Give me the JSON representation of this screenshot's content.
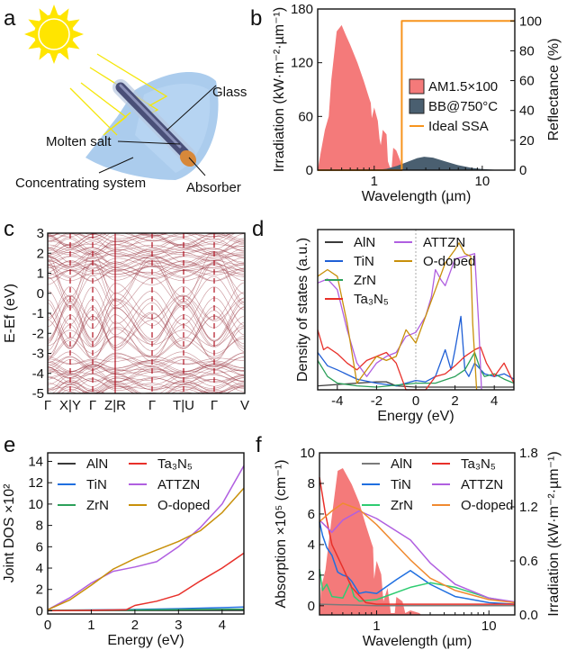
{
  "panel_labels": [
    "a",
    "b",
    "c",
    "d",
    "e",
    "f"
  ],
  "panel_a": {
    "labels": {
      "glass": "Glass",
      "molten_salt": "Molten salt",
      "absorber": "Absorber",
      "concentrating": "Concentrating system"
    },
    "icons": [
      "sun-icon",
      "parabolic-trough",
      "receiver-tube",
      "sunlight-rays"
    ]
  },
  "chart_data": [
    {
      "panel": "b",
      "type": "area",
      "xlabel": "Wavelength (µm)",
      "ylabel": "Irradiation (kW·m⁻²·µm⁻¹)",
      "y2label": "Reflectance (%)",
      "xscale": "log",
      "xlim": [
        0.3,
        20
      ],
      "ylim": [
        0,
        180
      ],
      "y2lim": [
        0,
        108
      ],
      "x_ticks": [
        1,
        10
      ],
      "x_tick_labels": [
        "1",
        "10"
      ],
      "y_ticks": [
        0,
        60,
        120,
        180
      ],
      "y_tick_labels": [
        "0",
        "60",
        "120",
        "180"
      ],
      "y2_ticks": [
        0,
        20,
        40,
        60,
        80,
        100
      ],
      "y2_tick_labels": [
        "0",
        "20",
        "40",
        "60",
        "80",
        "100"
      ],
      "legend_position": "right",
      "series": [
        {
          "name": "AM1.5×100",
          "kind": "area",
          "axis": "left",
          "color": "#f47a7a",
          "x": [
            0.3,
            0.32,
            0.35,
            0.38,
            0.4,
            0.45,
            0.5,
            0.55,
            0.6,
            0.7,
            0.8,
            0.9,
            0.93,
            0.95,
            1.0,
            1.08,
            1.12,
            1.15,
            1.2,
            1.3,
            1.34,
            1.4,
            1.45,
            1.5,
            1.6,
            1.75,
            1.8,
            2.0,
            2.3,
            2.5
          ],
          "y": [
            0,
            20,
            45,
            60,
            100,
            155,
            162,
            150,
            140,
            120,
            100,
            80,
            75,
            58,
            70,
            55,
            35,
            28,
            45,
            40,
            10,
            3,
            3,
            25,
            22,
            10,
            2,
            5,
            3,
            0
          ]
        },
        {
          "name": "BB@750°C",
          "kind": "area",
          "axis": "left",
          "color": "#4a5f70",
          "x": [
            1,
            1.3,
            1.6,
            2,
            2.5,
            2.9,
            3.5,
            4.5,
            6,
            8,
            10,
            14,
            20
          ],
          "y": [
            0,
            1.5,
            4.5,
            9,
            13.5,
            15,
            14,
            10,
            5.5,
            2.5,
            1.2,
            0.3,
            0
          ]
        },
        {
          "name": "Ideal SSA",
          "kind": "line",
          "axis": "right",
          "color": "#f7941d",
          "x": [
            0.3,
            1.8,
            1.8,
            20
          ],
          "y": [
            0,
            0,
            100,
            100
          ]
        }
      ]
    },
    {
      "panel": "c",
      "type": "line",
      "ylabel": "E-Ef (eV)",
      "ylim": [
        -5,
        3
      ],
      "y_ticks": [
        -5,
        -4,
        -3,
        -2,
        -1,
        0,
        1,
        2,
        3
      ],
      "y_tick_labels": [
        "-5",
        "-4",
        "-3",
        "-2",
        "-1",
        "0",
        "1",
        "2",
        "3"
      ],
      "x_tick_labels": [
        "Γ",
        "X|Y",
        "Γ",
        "Z|R",
        "Γ",
        "T|U",
        "Γ",
        "V"
      ],
      "color": "#9b3a45"
    },
    {
      "panel": "d",
      "type": "line",
      "xlabel": "Energy (eV)",
      "ylabel": "Density of states (a.u.)",
      "xlim": [
        -5,
        5
      ],
      "ylim": [
        0,
        1.2
      ],
      "x_ticks": [
        -4,
        -2,
        0,
        2,
        4
      ],
      "x_tick_labels": [
        "-4",
        "-2",
        "0",
        "2",
        "4"
      ],
      "fermi_level": 0,
      "legend_position": "top-left",
      "series": [
        {
          "name": "AlN",
          "color": "#3a3a3a",
          "x": [
            -5,
            -4,
            -3,
            -2,
            -1.5,
            -1,
            0,
            5
          ],
          "y": [
            0.03,
            0.04,
            0.05,
            0.06,
            0.06,
            0.03,
            0.02,
            0.02
          ]
        },
        {
          "name": "TiN",
          "color": "#1f5fd6",
          "x": [
            -5,
            -4.5,
            -4,
            -3,
            -2,
            -1,
            0,
            0.5,
            1,
            1.5,
            1.8,
            2,
            2.3,
            2.5,
            2.7,
            3,
            3.5,
            4,
            4.5,
            5
          ],
          "y": [
            0.28,
            0.18,
            0.15,
            0.08,
            0.05,
            0.03,
            0.07,
            0.06,
            0.1,
            0.3,
            0.15,
            0.3,
            0.55,
            0.15,
            0.1,
            0.2,
            0.12,
            0.1,
            0.12,
            0.08
          ]
        },
        {
          "name": "ZrN",
          "color": "#2ca05a",
          "x": [
            -5,
            -4.5,
            -4,
            -3,
            -2,
            0,
            1,
            2,
            2.5,
            3,
            3.3,
            3.5,
            4,
            4.5,
            5
          ],
          "y": [
            0.22,
            0.1,
            0.05,
            0.03,
            0.02,
            0.05,
            0.05,
            0.1,
            0.15,
            0.28,
            0.15,
            0.1,
            0.12,
            0.08,
            0.05
          ]
        },
        {
          "name": "Ta₃N₅",
          "color": "#e8302a",
          "x": [
            -5,
            -4.7,
            -4.5,
            -4,
            -3.5,
            -3,
            -2.5,
            -2,
            -1.5,
            -1,
            -0.5,
            0.5,
            1,
            1.5,
            2,
            2.5,
            3,
            3.3,
            3.6,
            4,
            4.5,
            5
          ],
          "y": [
            0.45,
            0.3,
            0.32,
            0.27,
            0.2,
            0.15,
            0.22,
            0.25,
            0.28,
            0.2,
            0,
            0,
            0.1,
            0.12,
            0.18,
            0.25,
            0.3,
            0.32,
            0.2,
            0.1,
            0.2,
            0.05
          ]
        },
        {
          "name": "ATTZN",
          "color": "#b05fe0",
          "x": [
            -5,
            -4.5,
            -4,
            -3.5,
            -3,
            -2.5,
            -2,
            -1.5,
            -1,
            -0.5,
            0,
            0.5,
            0.8,
            1,
            1.3,
            1.5,
            1.8,
            2,
            2.5,
            3,
            3.2,
            3.35
          ],
          "y": [
            0.8,
            0.83,
            0.75,
            0.45,
            0.2,
            0.1,
            0.2,
            0.25,
            0.28,
            0.4,
            0.43,
            0.55,
            0.7,
            0.9,
            0.82,
            0.78,
            0.9,
            0.98,
            1.0,
            1.02,
            0.5,
            0
          ]
        },
        {
          "name": "O-doped",
          "color": "#c8900a",
          "x": [
            -5,
            -4.5,
            -4,
            -3.5,
            -3,
            -2.5,
            -2,
            -1.5,
            -1,
            -0.5,
            0,
            0.5,
            1,
            1.5,
            2,
            2.2,
            2.5,
            2.8,
            2.9,
            3.1
          ],
          "y": [
            0.85,
            0.9,
            0.85,
            0.5,
            0.05,
            0.15,
            0.25,
            0.22,
            0.25,
            0.45,
            0.35,
            0.55,
            0.75,
            0.95,
            1.05,
            1.1,
            1.02,
            1.0,
            0.5,
            0
          ]
        }
      ]
    },
    {
      "panel": "e",
      "type": "line",
      "xlabel": "Energy (eV)",
      "ylabel": "Joint DOS ×10²",
      "xlim": [
        0,
        4.5
      ],
      "ylim": [
        -0.3,
        14.8
      ],
      "x_ticks": [
        0,
        1,
        2,
        3,
        4
      ],
      "x_tick_labels": [
        "0",
        "1",
        "2",
        "3",
        "4"
      ],
      "y_ticks": [
        0,
        2,
        4,
        6,
        8,
        10,
        12,
        14
      ],
      "y_tick_labels": [
        "0",
        "2",
        "4",
        "6",
        "8",
        "10",
        "12",
        "14"
      ],
      "legend_position": "top-left",
      "series": [
        {
          "name": "AlN",
          "color": "#3a3a3a",
          "x": [
            0,
            4.5
          ],
          "y": [
            0.03,
            0.03
          ]
        },
        {
          "name": "TiN",
          "color": "#1f6fe0",
          "x": [
            0,
            2,
            3,
            4.5
          ],
          "y": [
            0.05,
            0.12,
            0.2,
            0.35
          ]
        },
        {
          "name": "ZrN",
          "color": "#2ca05a",
          "x": [
            0,
            2,
            4.5
          ],
          "y": [
            0.05,
            0.08,
            0.15
          ]
        },
        {
          "name": "Ta₃N₅",
          "color": "#e8302a",
          "x": [
            0,
            1.8,
            2,
            2.5,
            3,
            3.5,
            4,
            4.5
          ],
          "y": [
            0,
            0.1,
            0.5,
            0.9,
            1.5,
            2.8,
            4,
            5.4
          ]
        },
        {
          "name": "ATTZN",
          "color": "#b05fe0",
          "x": [
            0,
            0.5,
            1,
            1.5,
            2,
            2.5,
            3,
            3.5,
            4,
            4.5
          ],
          "y": [
            0.1,
            1.2,
            2.6,
            3.7,
            4.1,
            4.6,
            6,
            7.8,
            10,
            13.6
          ]
        },
        {
          "name": "O-doped",
          "color": "#c8900a",
          "x": [
            0,
            0.5,
            1,
            1.5,
            2,
            2.5,
            3,
            3.5,
            4,
            4.5
          ],
          "y": [
            0.1,
            1,
            2.4,
            3.9,
            4.9,
            5.7,
            6.5,
            7.5,
            9.2,
            11.5
          ]
        }
      ]
    },
    {
      "panel": "f",
      "type": "line",
      "xlabel": "Wavelength (µm)",
      "ylabel": "Absorption ×10⁵ (cm⁻¹)",
      "y2label": "Irradiation (kW·m⁻²·µm⁻¹)",
      "xscale": "log",
      "xlim": [
        0.31,
        17
      ],
      "ylim": [
        -0.6,
        10
      ],
      "y2lim": [
        0,
        1.8
      ],
      "x_ticks": [
        1,
        10
      ],
      "x_tick_labels": [
        "1",
        "10"
      ],
      "y_ticks": [
        0,
        2,
        4,
        6,
        8,
        10
      ],
      "y_tick_labels": [
        "0",
        "2",
        "4",
        "6",
        "8",
        "10"
      ],
      "y2_ticks": [
        0,
        0.6,
        1.2,
        1.8
      ],
      "y2_tick_labels": [
        "0.0",
        "0.6",
        "1.2",
        "1.8"
      ],
      "legend_position": "top-right",
      "solar_irradiation": {
        "axis": "right",
        "color": "#f47a7a",
        "x": [
          0.31,
          0.32,
          0.35,
          0.4,
          0.45,
          0.5,
          0.6,
          0.7,
          0.8,
          0.9,
          0.93,
          0.95,
          1.0,
          1.1,
          1.15,
          1.25,
          1.34,
          1.45,
          1.5,
          1.7,
          1.8,
          2.0,
          2.4,
          2.5
        ],
        "y": [
          0,
          0.3,
          0.5,
          1.1,
          1.6,
          1.63,
          1.45,
          1.25,
          1.0,
          0.8,
          0.75,
          0.4,
          0.6,
          0.45,
          0.15,
          0.3,
          0.02,
          0.02,
          0.2,
          0.15,
          0.02,
          0.05,
          0.02,
          0
        ]
      },
      "series": [
        {
          "name": "AlN",
          "color": "#7a7a7a",
          "x": [
            0.31,
            1,
            17
          ],
          "y": [
            0.1,
            0.0,
            0.0
          ]
        },
        {
          "name": "TiN",
          "color": "#1f6fe0",
          "x": [
            0.31,
            0.33,
            0.36,
            0.4,
            0.45,
            0.5,
            0.55,
            0.6,
            0.7,
            0.8,
            1,
            1.5,
            2,
            3,
            5,
            10,
            17
          ],
          "y": [
            5.5,
            4.6,
            3.8,
            3.3,
            2.2,
            2.0,
            1.9,
            1.6,
            0.8,
            0.9,
            0.8,
            1.7,
            2.3,
            1.4,
            0.6,
            0.2,
            0.1
          ]
        },
        {
          "name": "ZrN",
          "color": "#2ecc71",
          "x": [
            0.31,
            0.33,
            0.36,
            0.4,
            0.5,
            0.58,
            0.63,
            0.7,
            1,
            2,
            3,
            5,
            10,
            17
          ],
          "y": [
            2.4,
            1.0,
            1.4,
            0.6,
            0.5,
            1.5,
            0.6,
            0.3,
            0.4,
            1.2,
            1.5,
            1.2,
            0.5,
            0.2
          ]
        },
        {
          "name": "Ta₃N₅",
          "color": "#e8302a",
          "x": [
            0.31,
            0.35,
            0.4,
            0.5,
            0.6,
            0.8,
            1,
            17
          ],
          "y": [
            8.4,
            6,
            4,
            2.5,
            1.2,
            0.2,
            0.1,
            0.1
          ]
        },
        {
          "name": "ATTZN",
          "color": "#b05fe0",
          "x": [
            0.31,
            0.4,
            0.5,
            0.7,
            1,
            2,
            3,
            5,
            10,
            17
          ],
          "y": [
            5.6,
            4.8,
            5.6,
            6.2,
            5.7,
            4.3,
            2.8,
            1.4,
            0.5,
            0.25
          ]
        },
        {
          "name": "O-doped",
          "color": "#f08a30",
          "x": [
            0.31,
            0.4,
            0.5,
            0.7,
            1,
            2,
            3,
            5,
            10,
            17
          ],
          "y": [
            5.5,
            6.2,
            6.7,
            6.3,
            5.3,
            3,
            1.8,
            1,
            0.4,
            0.2
          ]
        }
      ]
    }
  ]
}
